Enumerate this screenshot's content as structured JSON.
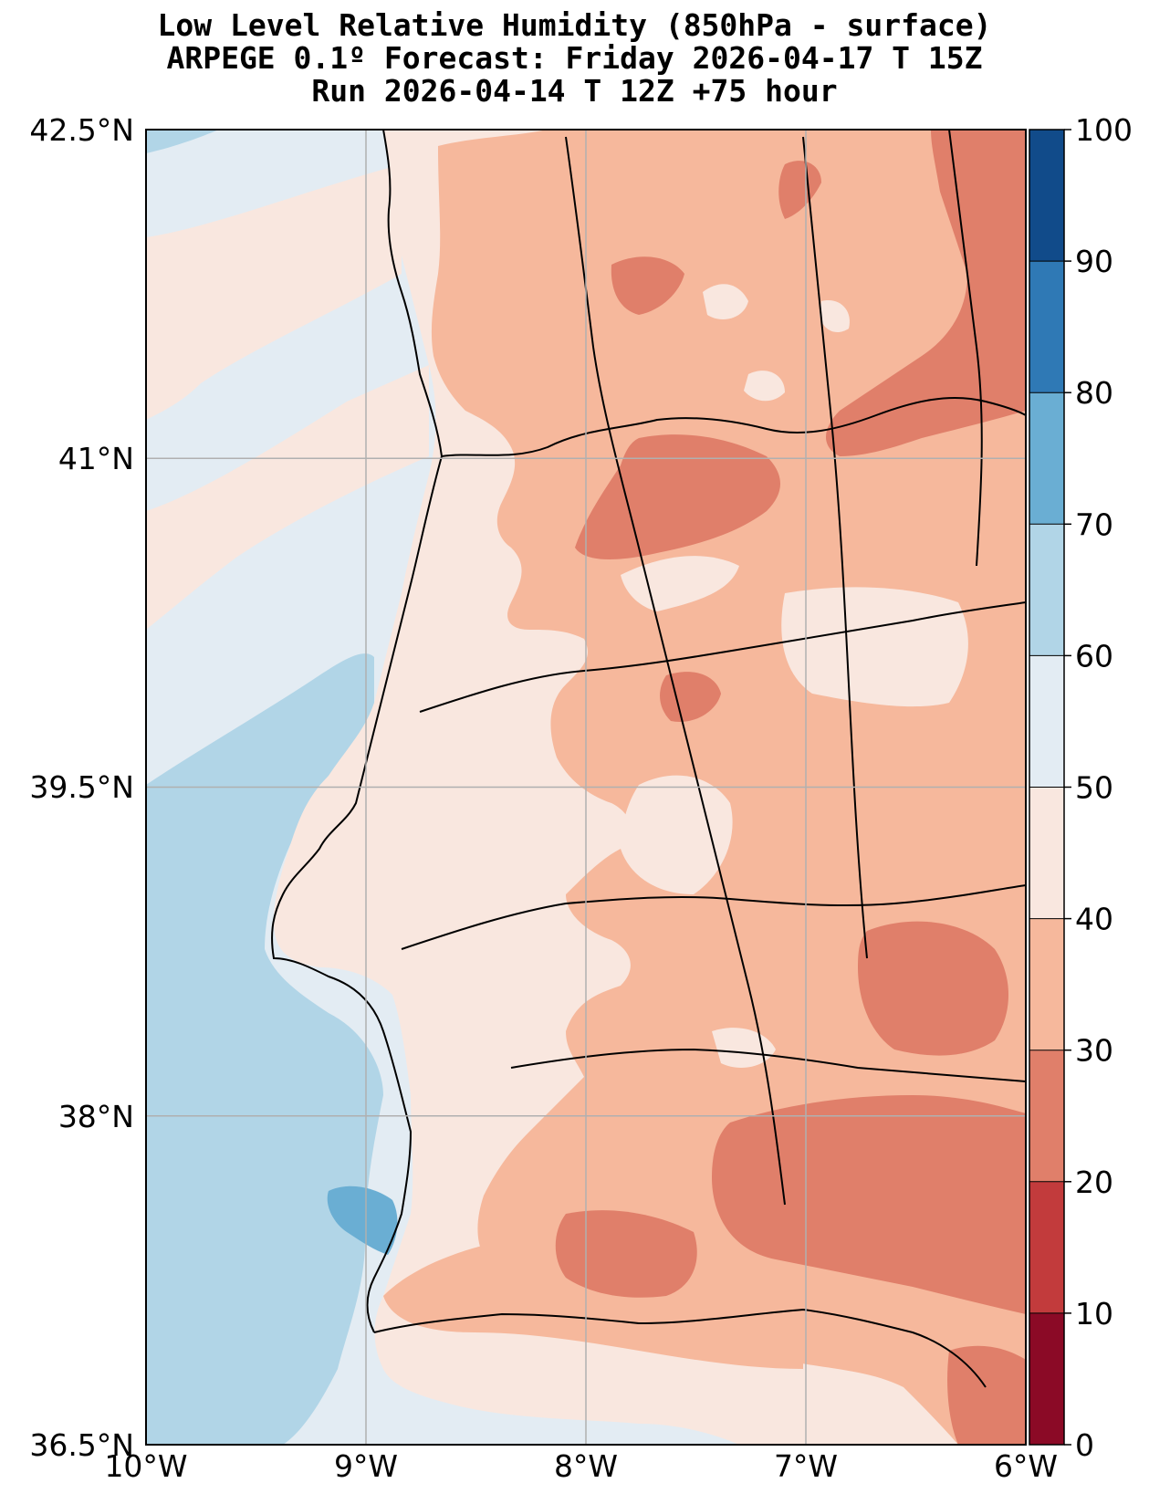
{
  "title": {
    "line1": "Low Level Relative Humidity (850hPa - surface)",
    "line2": "ARPEGE 0.1º Forecast: Friday 2026-04-17 T 15Z",
    "line3": "Run 2026-04-14 T 12Z +75 hour"
  },
  "map": {
    "lat_labels": [
      "42.5°N",
      "41°N",
      "39.5°N",
      "38°N",
      "36.5°N"
    ],
    "lon_labels": [
      "10°W",
      "9°W",
      "8°W",
      "7°W",
      "6°W"
    ],
    "lat_range": [
      36.5,
      42.5
    ],
    "lon_range": [
      -10,
      -6
    ]
  },
  "colorbar": {
    "levels": [
      0,
      10,
      20,
      30,
      40,
      50,
      60,
      70,
      80,
      90,
      100
    ],
    "labels": [
      "0",
      "10",
      "20",
      "30",
      "40",
      "50",
      "60",
      "70",
      "80",
      "90",
      "100"
    ],
    "colors": [
      "#8b0a26",
      "#c23b3c",
      "#e07f6a",
      "#f6b89c",
      "#f9e7df",
      "#e3ecf3",
      "#b1d5e7",
      "#6aaed3",
      "#2f79b5",
      "#114b8a"
    ]
  },
  "palette": {
    "ocean_50_60": "#e3ecf3",
    "ocean_60_70": "#b1d5e7",
    "ocean_70_80": "#6aaed3",
    "land_40_50": "#f9e7df",
    "land_30_40": "#f6b89c",
    "land_20_30": "#e07f6a",
    "gridline": "#b0b0b0",
    "coastline": "#000000"
  }
}
